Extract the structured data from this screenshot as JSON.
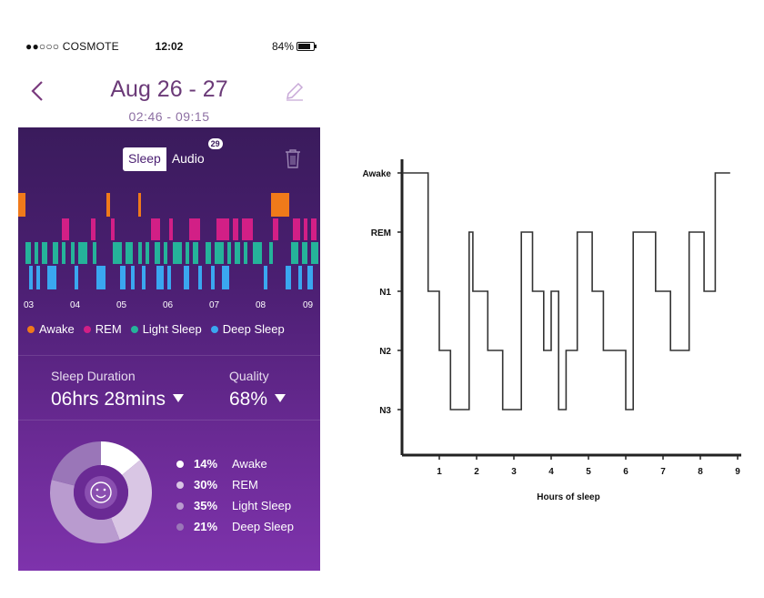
{
  "status_bar": {
    "carrier": "●●○○○ COSMOTE",
    "time": "12:02",
    "battery": "84%"
  },
  "header": {
    "title": "Aug 26 - 27",
    "subtitle": "02:46 - 09:15"
  },
  "toggle": {
    "sleep": "Sleep",
    "audio": "Audio",
    "audio_badge": "29"
  },
  "timeline": {
    "ticks": [
      "03",
      "04",
      "05",
      "06",
      "07",
      "08",
      "09"
    ]
  },
  "legend": [
    {
      "label": "Awake",
      "color": "#f07a1a"
    },
    {
      "label": "REM",
      "color": "#d21f86"
    },
    {
      "label": "Light Sleep",
      "color": "#25b39a"
    },
    {
      "label": "Deep Sleep",
      "color": "#3aa7f0"
    }
  ],
  "summary": {
    "duration_label": "Sleep Duration",
    "duration_value": "06hrs 28mins",
    "quality_label": "Quality",
    "quality_value": "68%"
  },
  "breakdown": [
    {
      "pct": "14%",
      "label": "Awake",
      "value": 14,
      "color": "#ffffff"
    },
    {
      "pct": "30%",
      "label": "REM",
      "value": 30,
      "color": "#d9c6e4"
    },
    {
      "pct": "35%",
      "label": "Light Sleep",
      "value": 35,
      "color": "#b99bcf"
    },
    {
      "pct": "21%",
      "label": "Deep Sleep",
      "value": 21,
      "color": "#9a76b8"
    }
  ],
  "hypnogram": {
    "ylabels": [
      "Awake",
      "REM",
      "N1",
      "N2",
      "N3"
    ],
    "xticks": [
      "1",
      "2",
      "3",
      "4",
      "5",
      "6",
      "7",
      "8",
      "9"
    ],
    "xlabel": "Hours of sleep",
    "steps": [
      [
        0,
        0
      ],
      [
        0.7,
        2
      ],
      [
        1,
        3
      ],
      [
        1.3,
        4
      ],
      [
        1.8,
        1
      ],
      [
        1.9,
        2
      ],
      [
        2.3,
        3
      ],
      [
        2.7,
        4
      ],
      [
        3.2,
        1
      ],
      [
        3.5,
        2
      ],
      [
        3.8,
        3
      ],
      [
        4,
        2
      ],
      [
        4.2,
        4
      ],
      [
        4.4,
        3
      ],
      [
        4.7,
        1
      ],
      [
        5.1,
        2
      ],
      [
        5.4,
        3
      ],
      [
        6,
        4
      ],
      [
        6.2,
        1
      ],
      [
        6.8,
        2
      ],
      [
        7.2,
        3
      ],
      [
        7.7,
        1
      ],
      [
        8.1,
        2
      ],
      [
        8.4,
        0
      ],
      [
        8.8,
        0
      ]
    ]
  }
}
